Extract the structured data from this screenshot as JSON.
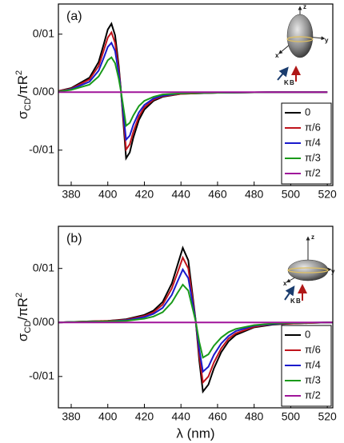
{
  "chart_data": [
    {
      "type": "line",
      "panel_label": "(a)",
      "y_label": [
        "σ",
        "CD",
        "/πR",
        "2"
      ],
      "x": [
        373,
        380,
        390,
        395,
        398,
        400,
        402,
        404,
        406,
        407,
        408,
        410,
        412,
        414,
        417,
        420,
        425,
        430,
        440,
        460,
        490,
        520
      ],
      "series": [
        {
          "name": "0",
          "color": "#000000",
          "values": [
            0.0002,
            0.0007,
            0.0025,
            0.0052,
            0.0085,
            0.0108,
            0.0118,
            0.0098,
            0.0045,
            0.001,
            -0.003,
            -0.0114,
            -0.0104,
            -0.0078,
            -0.0048,
            -0.003,
            -0.0015,
            -0.0008,
            -0.0003,
            -0.0001,
            0,
            0
          ]
        },
        {
          "name": "π/6",
          "color": "#c0141c",
          "values": [
            0.0002,
            0.0006,
            0.0022,
            0.0045,
            0.0074,
            0.0094,
            0.0103,
            0.0085,
            0.0039,
            0.0009,
            -0.0026,
            -0.0099,
            -0.009,
            -0.0068,
            -0.0042,
            -0.0026,
            -0.0013,
            -0.0007,
            -0.0003,
            -0.0001,
            0,
            0
          ]
        },
        {
          "name": "π/4",
          "color": "#1a1acc",
          "values": [
            0.0001,
            0.0005,
            0.0018,
            0.0037,
            0.0061,
            0.0078,
            0.0085,
            0.0071,
            0.0032,
            0.0007,
            -0.0022,
            -0.0082,
            -0.0075,
            -0.0056,
            -0.0035,
            -0.0022,
            -0.0011,
            -0.0006,
            -0.0002,
            -0.0001,
            0,
            0
          ]
        },
        {
          "name": "π/3",
          "color": "#1a9a1a",
          "values": [
            0.0001,
            0.0004,
            0.0013,
            0.0027,
            0.0043,
            0.0055,
            0.006,
            0.005,
            0.0023,
            0.0005,
            -0.0015,
            -0.0058,
            -0.0053,
            -0.004,
            -0.0024,
            -0.0015,
            -0.0008,
            -0.0004,
            -0.0002,
            -0.0001,
            0,
            0
          ]
        },
        {
          "name": "π/2",
          "color": "#a0149a",
          "values": [
            0,
            0,
            0,
            0,
            0,
            0,
            0,
            0,
            0,
            0,
            0,
            0,
            0,
            0,
            0,
            0,
            0,
            0,
            0,
            0,
            0,
            0
          ]
        }
      ],
      "xlim": [
        373,
        523
      ],
      "xticks": [
        380,
        400,
        420,
        440,
        460,
        480,
        500,
        520
      ],
      "ylim": [
        -0.0161,
        0.0152
      ],
      "yticks": [
        {
          "value": 0.01,
          "label": "0/01"
        },
        {
          "value": 0,
          "label": "0/00"
        },
        {
          "value": -0.01,
          "label": "-0/01"
        }
      ],
      "legend": "lower right",
      "inset": {
        "axes": [
          "x",
          "y",
          "z"
        ],
        "k": "K",
        "b": "B"
      }
    },
    {
      "type": "line",
      "panel_label": "(b)",
      "y_label": [
        "σ",
        "CD",
        "/πR",
        "2"
      ],
      "xlabel": "λ (nm)",
      "x": [
        373,
        380,
        400,
        410,
        420,
        425,
        430,
        435,
        438,
        441,
        444,
        446,
        448,
        450,
        452,
        455,
        458,
        462,
        466,
        470,
        480,
        490,
        500,
        520,
        523
      ],
      "series": [
        {
          "name": "0",
          "color": "#000000",
          "values": [
            0,
            0.0001,
            0.0003,
            0.0006,
            0.0014,
            0.0022,
            0.0038,
            0.0072,
            0.0105,
            0.0138,
            0.0115,
            0.006,
            0.0005,
            -0.007,
            -0.0128,
            -0.0115,
            -0.0085,
            -0.0055,
            -0.0035,
            -0.0023,
            -0.0009,
            -0.0004,
            -0.0002,
            0,
            0
          ]
        },
        {
          "name": "π/6",
          "color": "#c0141c",
          "values": [
            0,
            0.0001,
            0.0003,
            0.0005,
            0.0012,
            0.0019,
            0.0033,
            0.0063,
            0.0091,
            0.012,
            0.01,
            0.0052,
            0.0004,
            -0.0061,
            -0.0111,
            -0.01,
            -0.0074,
            -0.0048,
            -0.003,
            -0.002,
            -0.0008,
            -0.0003,
            -0.0002,
            0,
            0
          ]
        },
        {
          "name": "π/4",
          "color": "#1a1acc",
          "values": [
            0,
            0.0001,
            0.0002,
            0.0004,
            0.001,
            0.0016,
            0.0027,
            0.0051,
            0.0075,
            0.0098,
            0.0082,
            0.0043,
            0.0004,
            -0.005,
            -0.0091,
            -0.0082,
            -0.006,
            -0.0039,
            -0.0025,
            -0.0016,
            -0.0006,
            -0.0003,
            -0.0001,
            0,
            0
          ]
        },
        {
          "name": "π/3",
          "color": "#1a9a1a",
          "values": [
            0,
            0.0001,
            0.0002,
            0.0003,
            0.0007,
            0.0011,
            0.0019,
            0.0037,
            0.0054,
            0.007,
            0.0059,
            0.0031,
            0.0003,
            -0.0036,
            -0.0065,
            -0.0059,
            -0.0043,
            -0.0028,
            -0.0018,
            -0.0012,
            -0.0005,
            -0.0002,
            -0.0001,
            0,
            0
          ]
        },
        {
          "name": "π/2",
          "color": "#a0149a",
          "values": [
            0,
            0,
            0,
            0,
            0,
            0,
            0,
            0,
            0,
            0,
            0,
            0,
            0,
            0,
            0,
            0,
            0,
            0,
            0,
            0,
            0,
            0,
            0,
            0,
            0
          ]
        }
      ],
      "xlim": [
        373,
        523
      ],
      "xticks": [
        380,
        400,
        420,
        440,
        460,
        480,
        500,
        520
      ],
      "ylim": [
        -0.0158,
        0.0178
      ],
      "yticks": [
        {
          "value": 0.01,
          "label": "0/01"
        },
        {
          "value": 0,
          "label": "0/00"
        },
        {
          "value": -0.01,
          "label": "-0/01"
        }
      ],
      "legend": "lower right",
      "inset": {
        "axes": [
          "x",
          "y",
          "z"
        ],
        "k": "K",
        "b": "B"
      }
    }
  ]
}
